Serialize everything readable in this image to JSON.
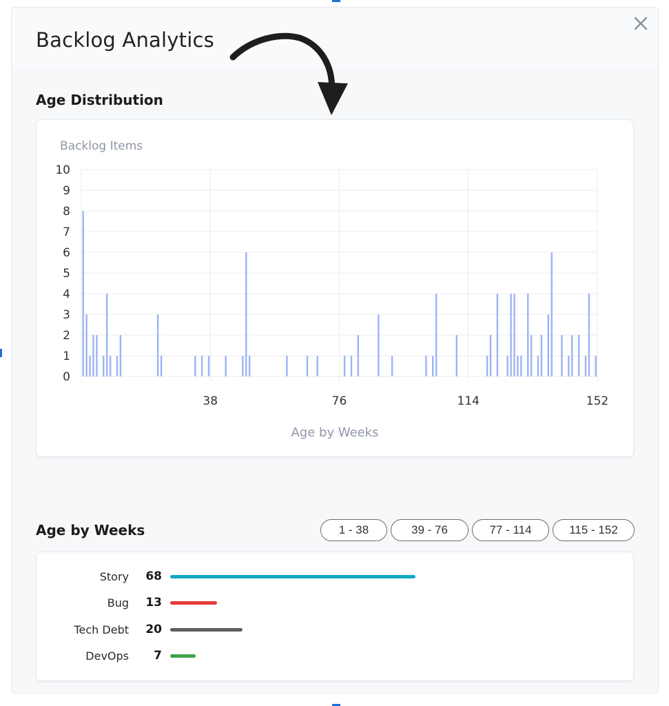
{
  "modal": {
    "title": "Backlog Analytics",
    "close_icon": "close-icon"
  },
  "age_distribution": {
    "section_title": "Age Distribution",
    "chart_data": {
      "type": "bar",
      "ylabel": "Backlog Items",
      "xlabel": "Age by Weeks",
      "ylim": [
        0,
        10
      ],
      "xlim": [
        0,
        152
      ],
      "yticks": [
        "0",
        "1",
        "2",
        "3",
        "4",
        "5",
        "6",
        "7",
        "8",
        "9",
        "10"
      ],
      "xticks": [
        "38",
        "76",
        "114",
        "152"
      ],
      "grid": true,
      "bar_color": "#9db3f5",
      "x": [
        0,
        1,
        2,
        3,
        4,
        6,
        7,
        8,
        10,
        11,
        22,
        23,
        33,
        35,
        37,
        42,
        47,
        48,
        49,
        60,
        66,
        69,
        77,
        79,
        81,
        87,
        91,
        101,
        103,
        104,
        110,
        119,
        120,
        122,
        125,
        126,
        127,
        128,
        129,
        131,
        132,
        134,
        135,
        137,
        138,
        141,
        143,
        144,
        146,
        148,
        149,
        151
      ],
      "values": [
        8,
        3,
        1,
        2,
        2,
        1,
        4,
        1,
        1,
        2,
        3,
        1,
        1,
        1,
        1,
        1,
        1,
        6,
        1,
        1,
        1,
        1,
        1,
        1,
        2,
        3,
        1,
        1,
        1,
        4,
        2,
        1,
        2,
        4,
        1,
        4,
        4,
        1,
        1,
        4,
        2,
        1,
        2,
        3,
        6,
        2,
        1,
        2,
        2,
        1,
        4,
        1
      ]
    }
  },
  "age_by_weeks": {
    "section_title": "Age by Weeks",
    "ranges": [
      "1 - 38",
      "39 - 76",
      "77 - 114",
      "115 - 152"
    ],
    "items": [
      {
        "label": "Story",
        "count": "68",
        "value": 68,
        "color": "#10a7c0"
      },
      {
        "label": "Bug",
        "count": "13",
        "value": 13,
        "color": "#e63c3c"
      },
      {
        "label": "Tech Debt",
        "count": "20",
        "value": 20,
        "color": "#5e5e5e"
      },
      {
        "label": "DevOps",
        "count": "7",
        "value": 7,
        "color": "#3ea34c"
      }
    ]
  }
}
